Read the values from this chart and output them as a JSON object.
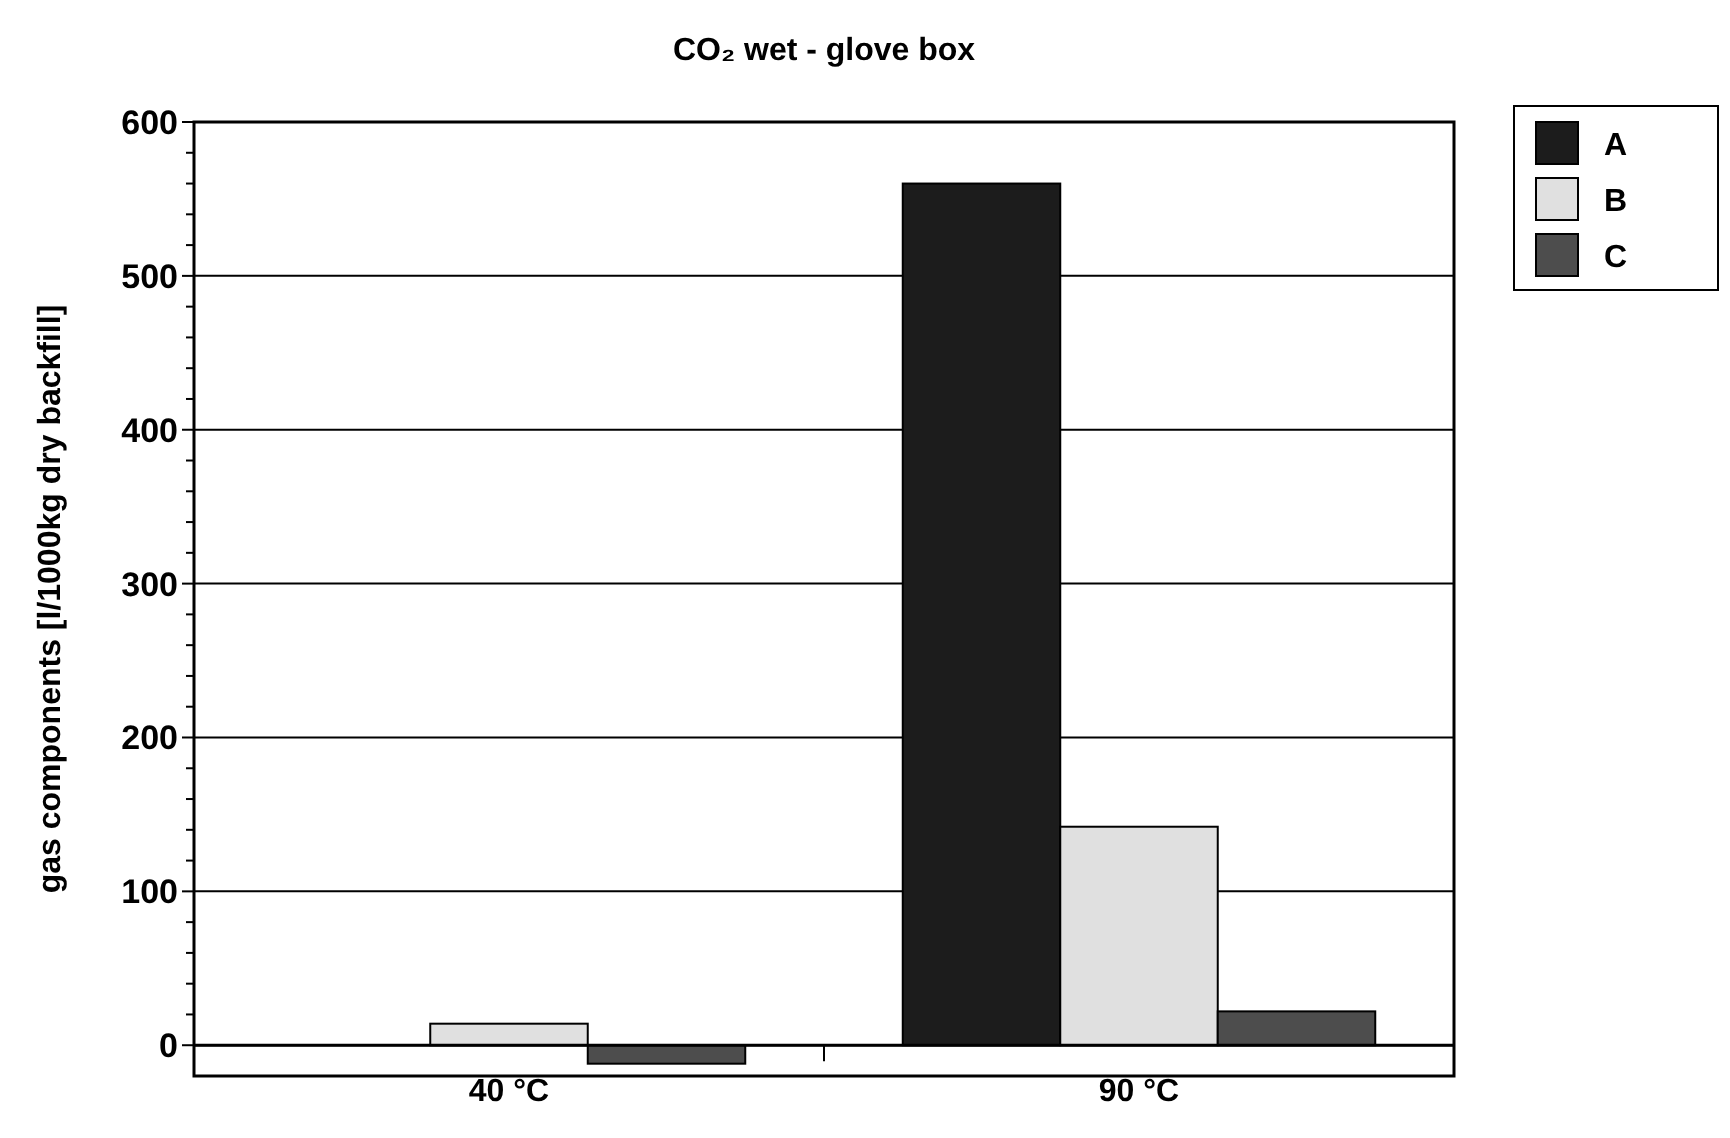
{
  "chart_data": {
    "type": "bar",
    "title": "CO₂ wet - glove box",
    "ylabel": "gas components [l/1000kg dry backfill]",
    "categories": [
      "40 °C",
      "90 °C"
    ],
    "series": [
      {
        "name": "A",
        "color": "#1c1c1c",
        "values": [
          null,
          560
        ]
      },
      {
        "name": "B",
        "color": "#e0e0e0",
        "values": [
          14,
          142
        ]
      },
      {
        "name": "C",
        "color": "#4d4d4d",
        "values": [
          -12,
          22
        ]
      }
    ],
    "ylim": [
      -20,
      600
    ],
    "yticks": [
      0,
      {
        "value": 20,
        "label": null
      },
      {
        "value": 40,
        "label": null
      },
      {
        "value": 60,
        "label": null
      },
      {
        "value": 80,
        "label": null
      },
      100,
      {
        "value": 120,
        "label": null
      },
      {
        "value": 140,
        "label": null
      },
      {
        "value": 160,
        "label": null
      },
      {
        "value": 180,
        "label": null
      },
      200,
      {
        "value": 220,
        "label": null
      },
      {
        "value": 240,
        "label": null
      },
      {
        "value": 260,
        "label": null
      },
      {
        "value": 280,
        "label": null
      },
      300,
      {
        "value": 320,
        "label": null
      },
      {
        "value": 340,
        "label": null
      },
      {
        "value": 360,
        "label": null
      },
      {
        "value": 380,
        "label": null
      },
      400,
      {
        "value": 420,
        "label": null
      },
      {
        "value": 440,
        "label": null
      },
      {
        "value": 460,
        "label": null
      },
      {
        "value": 480,
        "label": null
      },
      500,
      {
        "value": 520,
        "label": null
      },
      {
        "value": 540,
        "label": null
      },
      {
        "value": 560,
        "label": null
      },
      {
        "value": 580,
        "label": null
      },
      600
    ],
    "grid": "y",
    "legend": "top right"
  }
}
